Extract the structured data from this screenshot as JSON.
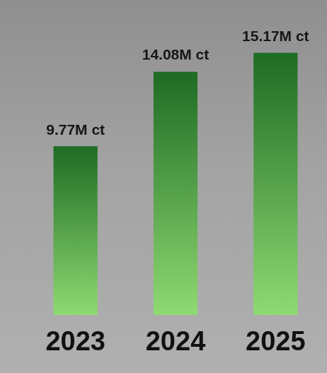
{
  "chart_data": {
    "type": "bar",
    "categories": [
      "2023",
      "2024",
      "2025"
    ],
    "values": [
      9.77,
      14.08,
      15.17
    ],
    "value_labels": [
      "9.77M ct",
      "14.08M ct",
      "15.17M ct"
    ],
    "color": "#1e6b24",
    "ylim": [
      0,
      17
    ],
    "grid": false,
    "data_labels": true,
    "tick_labels": "x"
  }
}
